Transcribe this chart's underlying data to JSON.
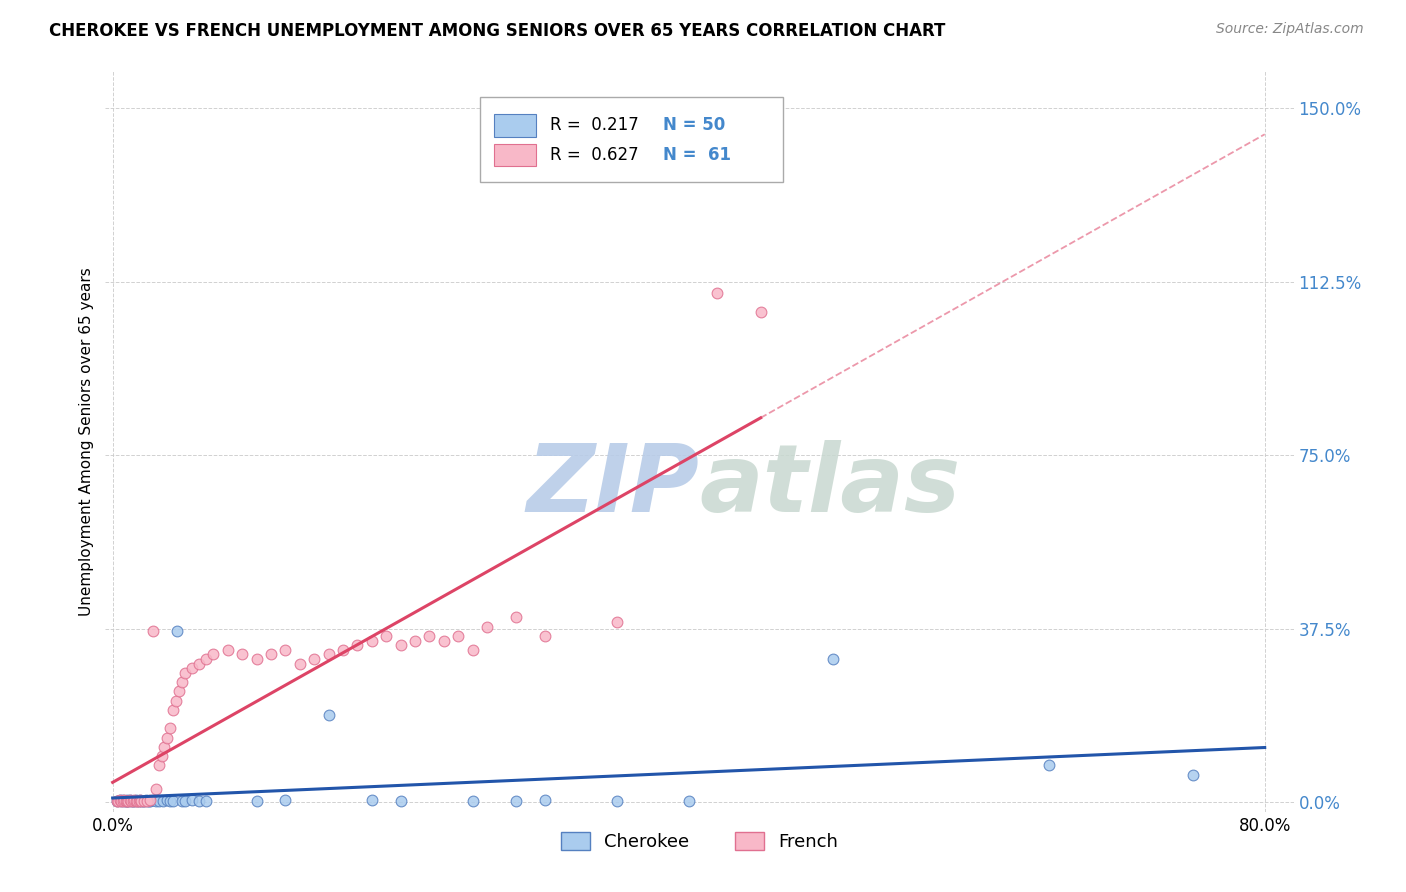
{
  "title": "CHEROKEE VS FRENCH UNEMPLOYMENT AMONG SENIORS OVER 65 YEARS CORRELATION CHART",
  "source": "Source: ZipAtlas.com",
  "ylabel": "Unemployment Among Seniors over 65 years",
  "xlim": [
    -0.005,
    0.82
  ],
  "ylim": [
    -0.02,
    1.58
  ],
  "yticks": [
    0.0,
    0.375,
    0.75,
    1.125,
    1.5
  ],
  "ytick_labels": [
    "0.0%",
    "37.5%",
    "75.0%",
    "112.5%",
    "150.0%"
  ],
  "xtick_positions": [
    0.0,
    0.8
  ],
  "xtick_labels": [
    "0.0%",
    "80.0%"
  ],
  "cherokee_R": 0.217,
  "cherokee_N": 50,
  "french_R": 0.627,
  "french_N": 61,
  "cherokee_face_color": "#aaccee",
  "french_face_color": "#f8b8c8",
  "cherokee_edge_color": "#5580c0",
  "french_edge_color": "#e07090",
  "cherokee_line_color": "#2255aa",
  "french_line_color": "#dd4466",
  "watermark_color": "#d0e4f8",
  "background_color": "#ffffff",
  "cherokee_x": [
    0.003,
    0.005,
    0.006,
    0.007,
    0.008,
    0.009,
    0.01,
    0.01,
    0.011,
    0.012,
    0.013,
    0.014,
    0.015,
    0.016,
    0.017,
    0.018,
    0.019,
    0.02,
    0.021,
    0.022,
    0.023,
    0.024,
    0.025,
    0.026,
    0.028,
    0.03,
    0.032,
    0.035,
    0.038,
    0.04,
    0.042,
    0.045,
    0.048,
    0.05,
    0.055,
    0.06,
    0.065,
    0.1,
    0.12,
    0.15,
    0.18,
    0.2,
    0.25,
    0.28,
    0.3,
    0.35,
    0.4,
    0.5,
    0.65,
    0.75
  ],
  "cherokee_y": [
    0.003,
    0.005,
    0.003,
    0.005,
    0.004,
    0.003,
    0.005,
    0.004,
    0.003,
    0.005,
    0.004,
    0.003,
    0.004,
    0.005,
    0.003,
    0.004,
    0.005,
    0.003,
    0.004,
    0.003,
    0.005,
    0.004,
    0.003,
    0.004,
    0.005,
    0.003,
    0.004,
    0.003,
    0.005,
    0.004,
    0.003,
    0.37,
    0.004,
    0.003,
    0.005,
    0.003,
    0.004,
    0.003,
    0.005,
    0.19,
    0.005,
    0.003,
    0.004,
    0.003,
    0.005,
    0.003,
    0.004,
    0.31,
    0.08,
    0.06
  ],
  "french_x": [
    0.003,
    0.004,
    0.005,
    0.006,
    0.007,
    0.008,
    0.009,
    0.01,
    0.011,
    0.012,
    0.013,
    0.014,
    0.015,
    0.016,
    0.017,
    0.018,
    0.019,
    0.02,
    0.022,
    0.024,
    0.026,
    0.028,
    0.03,
    0.032,
    0.034,
    0.036,
    0.038,
    0.04,
    0.042,
    0.044,
    0.046,
    0.048,
    0.05,
    0.055,
    0.06,
    0.065,
    0.07,
    0.08,
    0.09,
    0.1,
    0.11,
    0.12,
    0.13,
    0.14,
    0.15,
    0.16,
    0.17,
    0.18,
    0.19,
    0.2,
    0.21,
    0.22,
    0.23,
    0.24,
    0.25,
    0.26,
    0.28,
    0.3,
    0.35,
    0.42,
    0.45
  ],
  "french_y": [
    0.004,
    0.003,
    0.005,
    0.004,
    0.003,
    0.005,
    0.004,
    0.003,
    0.004,
    0.005,
    0.004,
    0.003,
    0.005,
    0.004,
    0.003,
    0.004,
    0.005,
    0.003,
    0.004,
    0.003,
    0.005,
    0.37,
    0.03,
    0.08,
    0.1,
    0.12,
    0.14,
    0.16,
    0.2,
    0.22,
    0.24,
    0.26,
    0.28,
    0.29,
    0.3,
    0.31,
    0.32,
    0.33,
    0.32,
    0.31,
    0.32,
    0.33,
    0.3,
    0.31,
    0.32,
    0.33,
    0.34,
    0.35,
    0.36,
    0.34,
    0.35,
    0.36,
    0.35,
    0.36,
    0.33,
    0.38,
    0.4,
    0.36,
    0.39,
    1.1,
    1.06
  ]
}
